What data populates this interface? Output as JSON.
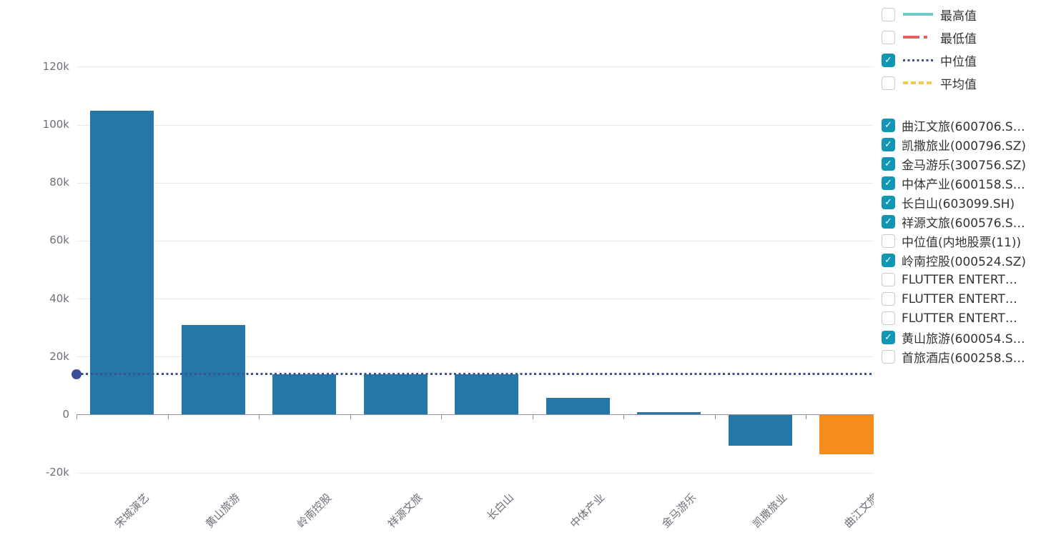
{
  "colors": {
    "bar_default": "#2577a8",
    "bar_highlight": "#f68c1e",
    "median_line": "#3d4f94",
    "checkbox_checked_bg": "#1196b3",
    "grid": "#e8eaf3",
    "axis": "#90929a",
    "axis_label": "#6e7079",
    "legend_text": "#333333"
  },
  "legend": {
    "metrics": [
      {
        "label": "最高值",
        "checked": false,
        "line_style": "solid",
        "color": "#6fc9c5"
      },
      {
        "label": "最低值",
        "checked": false,
        "line_style": "dashdot",
        "color": "#e0625f"
      },
      {
        "label": "中位值",
        "checked": true,
        "line_style": "dotted",
        "color": "#3d4f94"
      },
      {
        "label": "平均值",
        "checked": false,
        "line_style": "dashed",
        "color": "#eecd4d"
      }
    ],
    "series": [
      {
        "label": "曲江文旅(600706.S…",
        "checked": true
      },
      {
        "label": "凯撒旅业(000796.SZ)",
        "checked": true
      },
      {
        "label": "金马游乐(300756.SZ)",
        "checked": true
      },
      {
        "label": "中体产业(600158.S…",
        "checked": true
      },
      {
        "label": "长白山(603099.SH)",
        "checked": true
      },
      {
        "label": "祥源文旅(600576.S…",
        "checked": true
      },
      {
        "label": "中位值(内地股票(11))",
        "checked": false
      },
      {
        "label": "岭南控股(000524.SZ)",
        "checked": true
      },
      {
        "label": "FLUTTER ENTERT…",
        "checked": false
      },
      {
        "label": "FLUTTER ENTERT…",
        "checked": false
      },
      {
        "label": "FLUTTER ENTERT…",
        "checked": false
      },
      {
        "label": "黄山旅游(600054.S…",
        "checked": true
      },
      {
        "label": "首旅酒店(600258.S…",
        "checked": false
      }
    ],
    "checkmark_glyph": "✓"
  },
  "chart_data": {
    "type": "bar",
    "title": "",
    "xlabel": "",
    "ylabel": "",
    "categories": [
      "宋城演艺",
      "黄山旅游",
      "岭南控股",
      "祥源文旅",
      "长白山",
      "中体产业",
      "金马游乐",
      "凯撒旅业",
      "曲江文旅"
    ],
    "values": [
      104900,
      31000,
      14000,
      13900,
      13850,
      5900,
      800,
      -10700,
      -13600
    ],
    "bar_colors": [
      "#2577a8",
      "#2577a8",
      "#2577a8",
      "#2577a8",
      "#2577a8",
      "#2577a8",
      "#2577a8",
      "#2577a8",
      "#f68c1e"
    ],
    "median_line": {
      "label": "中位值",
      "value": 14050,
      "color": "#3d4f94",
      "style": "dotted",
      "start_marker": "circle"
    },
    "ylim": [
      -20000,
      120000
    ],
    "yticks": [
      {
        "value": 120000,
        "label": "120k"
      },
      {
        "value": 100000,
        "label": "100k"
      },
      {
        "value": 80000,
        "label": "80k"
      },
      {
        "value": 60000,
        "label": "60k"
      },
      {
        "value": 40000,
        "label": "40k"
      },
      {
        "value": 20000,
        "label": "20k"
      },
      {
        "value": 0,
        "label": "0"
      },
      {
        "value": -20000,
        "label": "-20k"
      }
    ],
    "grid": true,
    "legend_position": "right",
    "x_label_rotation_deg": 45
  }
}
